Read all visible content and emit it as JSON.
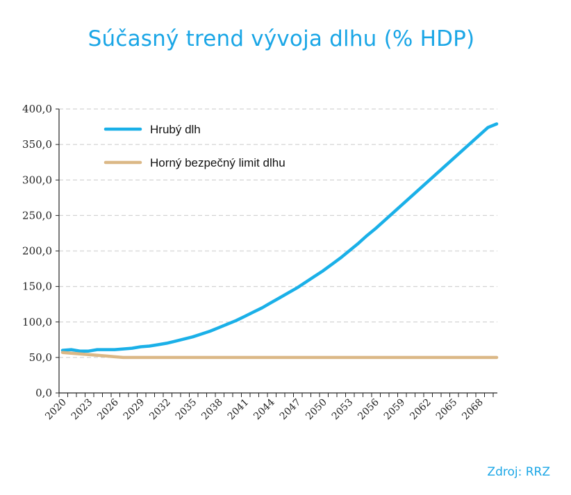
{
  "title": "Súčasný trend vývoja dlhu (% HDP)",
  "source": "Zdroj: RRZ",
  "chart_data": {
    "type": "line",
    "title": "Súčasný trend vývoja dlhu (% HDP)",
    "xlabel": "",
    "ylabel": "",
    "x": [
      2020,
      2021,
      2022,
      2023,
      2024,
      2025,
      2026,
      2027,
      2028,
      2029,
      2030,
      2031,
      2032,
      2033,
      2034,
      2035,
      2036,
      2037,
      2038,
      2039,
      2040,
      2041,
      2042,
      2043,
      2044,
      2045,
      2046,
      2047,
      2048,
      2049,
      2050,
      2051,
      2052,
      2053,
      2054,
      2055,
      2056,
      2057,
      2058,
      2059,
      2060,
      2061,
      2062,
      2063,
      2064,
      2065,
      2066,
      2067,
      2068,
      2069,
      2070
    ],
    "x_tick_labels": [
      "2020",
      "2023",
      "2026",
      "2029",
      "2032",
      "2035",
      "2038",
      "2041",
      "2044",
      "2047",
      "2050",
      "2053",
      "2056",
      "2059",
      "2062",
      "2065",
      "2068"
    ],
    "x_tick_years": [
      2020,
      2023,
      2026,
      2029,
      2032,
      2035,
      2038,
      2041,
      2044,
      2047,
      2050,
      2053,
      2056,
      2059,
      2062,
      2065,
      2068
    ],
    "ylim": [
      0,
      400
    ],
    "y_ticks": [
      0,
      50,
      100,
      150,
      200,
      250,
      300,
      350,
      400
    ],
    "y_tick_labels": [
      "0,0",
      "50,0",
      "100,0",
      "150,0",
      "200,0",
      "250,0",
      "300,0",
      "350,0",
      "400,0"
    ],
    "grid": "horizontal dashed",
    "legend_position": "top-left",
    "series": [
      {
        "name": "Hrubý dlh",
        "color": "#1ab0e8",
        "values": [
          60,
          61,
          59,
          59,
          61,
          61,
          61,
          62,
          63,
          65,
          66,
          68,
          70,
          73,
          76,
          79,
          83,
          87,
          92,
          97,
          102,
          108,
          114,
          120,
          127,
          134,
          141,
          148,
          156,
          164,
          172,
          181,
          190,
          200,
          210,
          221,
          231,
          242,
          253,
          264,
          275,
          286,
          297,
          308,
          319,
          330,
          341,
          352,
          363,
          374,
          379
        ]
      },
      {
        "name": "Horný bezpečný limit dlhu",
        "color": "#dbb886",
        "values": [
          57,
          56,
          55,
          54,
          53,
          52,
          51,
          50,
          50,
          50,
          50,
          50,
          50,
          50,
          50,
          50,
          50,
          50,
          50,
          50,
          50,
          50,
          50,
          50,
          50,
          50,
          50,
          50,
          50,
          50,
          50,
          50,
          50,
          50,
          50,
          50,
          50,
          50,
          50,
          50,
          50,
          50,
          50,
          50,
          50,
          50,
          50,
          50,
          50,
          50,
          50
        ]
      }
    ]
  }
}
